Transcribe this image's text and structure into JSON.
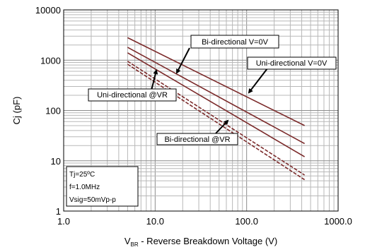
{
  "chart_data": {
    "type": "line",
    "scale": {
      "x": "log",
      "y": "log"
    },
    "xlim": [
      1,
      1000
    ],
    "ylim": [
      1,
      10000
    ],
    "grid": true,
    "xlabel_main": "V",
    "xlabel_sub": "BR",
    "xlabel_rest": " - Reverse Breakdown Voltage (V)",
    "ylabel": "Cj (pF)",
    "x_ticks": [
      {
        "value": 1,
        "label": "1.0"
      },
      {
        "value": 10,
        "label": "10.0"
      },
      {
        "value": 100,
        "label": "100.0"
      },
      {
        "value": 1000,
        "label": "1000.0"
      }
    ],
    "y_ticks": [
      {
        "value": 1,
        "label": "1"
      },
      {
        "value": 10,
        "label": "10"
      },
      {
        "value": 100,
        "label": "100"
      },
      {
        "value": 1000,
        "label": "1000"
      },
      {
        "value": 10000,
        "label": "10000"
      }
    ],
    "series": [
      {
        "style": "solid",
        "color": "#7b2a2a",
        "x": [
          5,
          430
        ],
        "y": [
          2800,
          50
        ]
      },
      {
        "style": "solid",
        "color": "#7b2a2a",
        "x": [
          5,
          430
        ],
        "y": [
          1800,
          22
        ]
      },
      {
        "style": "solid",
        "color": "#7b2a2a",
        "x": [
          5,
          430
        ],
        "y": [
          1400,
          12
        ]
      },
      {
        "style": "dashed",
        "color": "#7b2a2a",
        "x": [
          5,
          430
        ],
        "y": [
          950,
          5.2
        ]
      },
      {
        "style": "dashed",
        "color": "#7b2a2a",
        "x": [
          5,
          430
        ],
        "y": [
          830,
          4.2
        ]
      }
    ],
    "annotations": [
      {
        "text": "Bi-directional V=0V",
        "point": [
          17,
          750
        ]
      },
      {
        "text": "Uni-directional V=0V",
        "point": [
          110,
          205
        ]
      },
      {
        "text": "Uni-directional @VR",
        "point": [
          7,
          380
        ]
      },
      {
        "text": "Bi-directional @VR",
        "point": [
          70,
          55
        ]
      }
    ],
    "conditions": [
      "Tj=25ºC",
      "f=1.0MHz",
      "Vsig=50mVp-p"
    ]
  }
}
